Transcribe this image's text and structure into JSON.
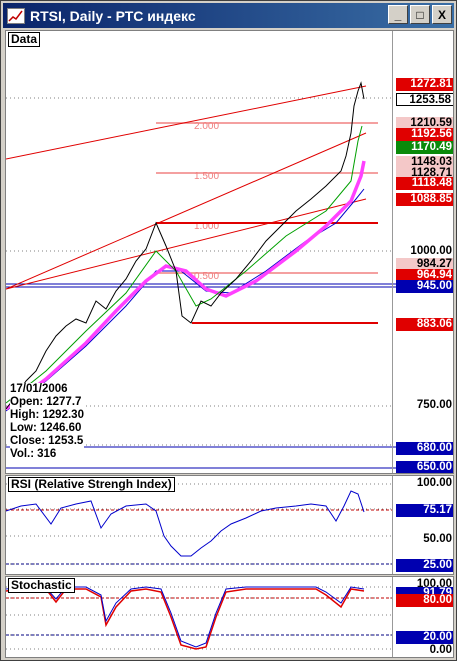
{
  "window": {
    "title": "RTSI, Daily - РТС индекс",
    "min_label": "_",
    "max_label": "□",
    "close_label": "X"
  },
  "panes": {
    "price": {
      "label": "Data",
      "date": "17/01/2006",
      "ohlc": [
        {
          "label": "Open:",
          "value": "1277.7"
        },
        {
          "label": "High:",
          "value": "1292.30"
        },
        {
          "label": "Low:",
          "value": "1246.60"
        },
        {
          "label": "Close:",
          "value": "1253.5"
        },
        {
          "label": "Vol.:",
          "value": "316"
        }
      ],
      "tags": [
        {
          "text": "1272.81",
          "style": "red"
        },
        {
          "text": "1253.58",
          "style": "white"
        },
        {
          "text": "1210.59",
          "style": "pink"
        },
        {
          "text": "1192.56",
          "style": "red"
        },
        {
          "text": "1170.49",
          "style": "green"
        },
        {
          "text": "1148.03",
          "style": "pink"
        },
        {
          "text": "1128.71",
          "style": "pink"
        },
        {
          "text": "1118.48",
          "style": "red"
        },
        {
          "text": "1088.85",
          "style": "red"
        },
        {
          "text": "1000.00",
          "style": "plain"
        },
        {
          "text": "984.27",
          "style": "pink"
        },
        {
          "text": "964.94",
          "style": "red"
        },
        {
          "text": "945.00",
          "style": "blue"
        },
        {
          "text": "883.06",
          "style": "red"
        },
        {
          "text": "750.00",
          "style": "plain"
        },
        {
          "text": "680.00",
          "style": "blue"
        },
        {
          "text": "650.00",
          "style": "blue"
        }
      ],
      "fib_labels": [
        "2.000",
        "1.500",
        "1.000",
        "0.500"
      ]
    },
    "rsi": {
      "label": "RSI (Relative Strengh Index)",
      "tags": [
        {
          "text": "100.00",
          "style": "plain"
        },
        {
          "text": "75.17",
          "style": "blue"
        },
        {
          "text": "50.00",
          "style": "plain"
        },
        {
          "text": "25.00",
          "style": "blue"
        }
      ]
    },
    "stoch": {
      "label": "Stochastic",
      "tags": [
        {
          "text": "100.00",
          "style": "plain"
        },
        {
          "text": "91.79",
          "style": "blue"
        },
        {
          "text": "80.00",
          "style": "red"
        },
        {
          "text": "20.00",
          "style": "blue"
        },
        {
          "text": "0.00",
          "style": "plain"
        }
      ]
    }
  },
  "colors": {
    "close_line": "#000000",
    "ma_fast": "#00a000",
    "ma_mid": "#ff40ff",
    "ma_slow": "#0000cc",
    "trend": "#e00000",
    "fib": "#f08080",
    "support": "#0000b0",
    "rsi": "#0000cc",
    "stoch_k": "#0000cc",
    "stoch_d": "#e00000"
  }
}
